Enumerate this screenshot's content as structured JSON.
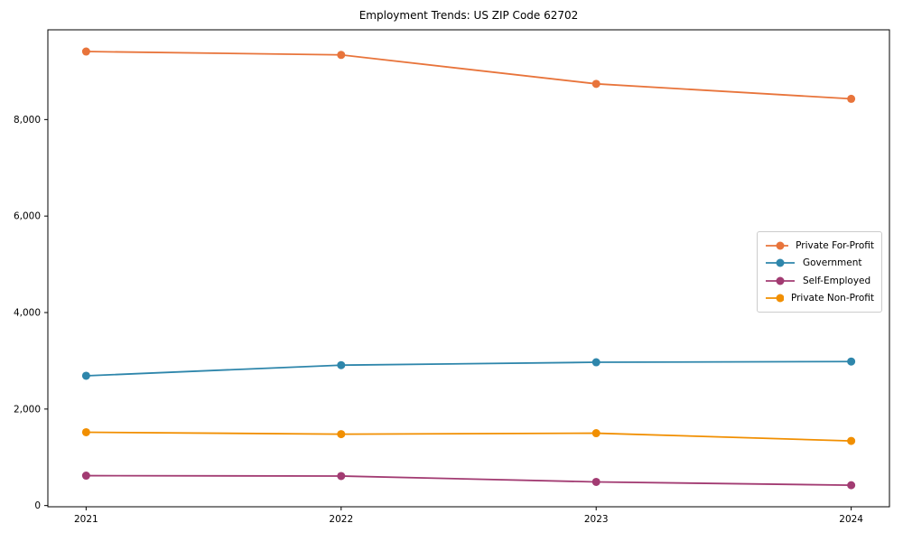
{
  "chart_data": {
    "type": "line",
    "title": "Employment Trends: US ZIP Code 62702",
    "xlabel": "",
    "ylabel": "",
    "x": [
      2021,
      2022,
      2023,
      2024
    ],
    "x_tick_labels": [
      "2021",
      "2022",
      "2023",
      "2024"
    ],
    "y_ticks": [
      0,
      2000,
      4000,
      6000,
      8000
    ],
    "y_tick_labels": [
      "0",
      "2,000",
      "4,000",
      "6,000",
      "8,000"
    ],
    "xlim": [
      2020.85,
      2024.15
    ],
    "ylim": [
      -25,
      9860
    ],
    "grid": false,
    "legend_position": "center right",
    "series": [
      {
        "name": "Private For-Profit",
        "color": "#E8743B",
        "values": [
          9410,
          9340,
          8740,
          8430
        ]
      },
      {
        "name": "Government",
        "color": "#2E86AB",
        "values": [
          2690,
          2910,
          2970,
          2985
        ]
      },
      {
        "name": "Self-Employed",
        "color": "#A23B72",
        "values": [
          620,
          612,
          490,
          422
        ]
      },
      {
        "name": "Private Non-Profit",
        "color": "#F18F01",
        "values": [
          1520,
          1480,
          1500,
          1340
        ]
      }
    ]
  }
}
